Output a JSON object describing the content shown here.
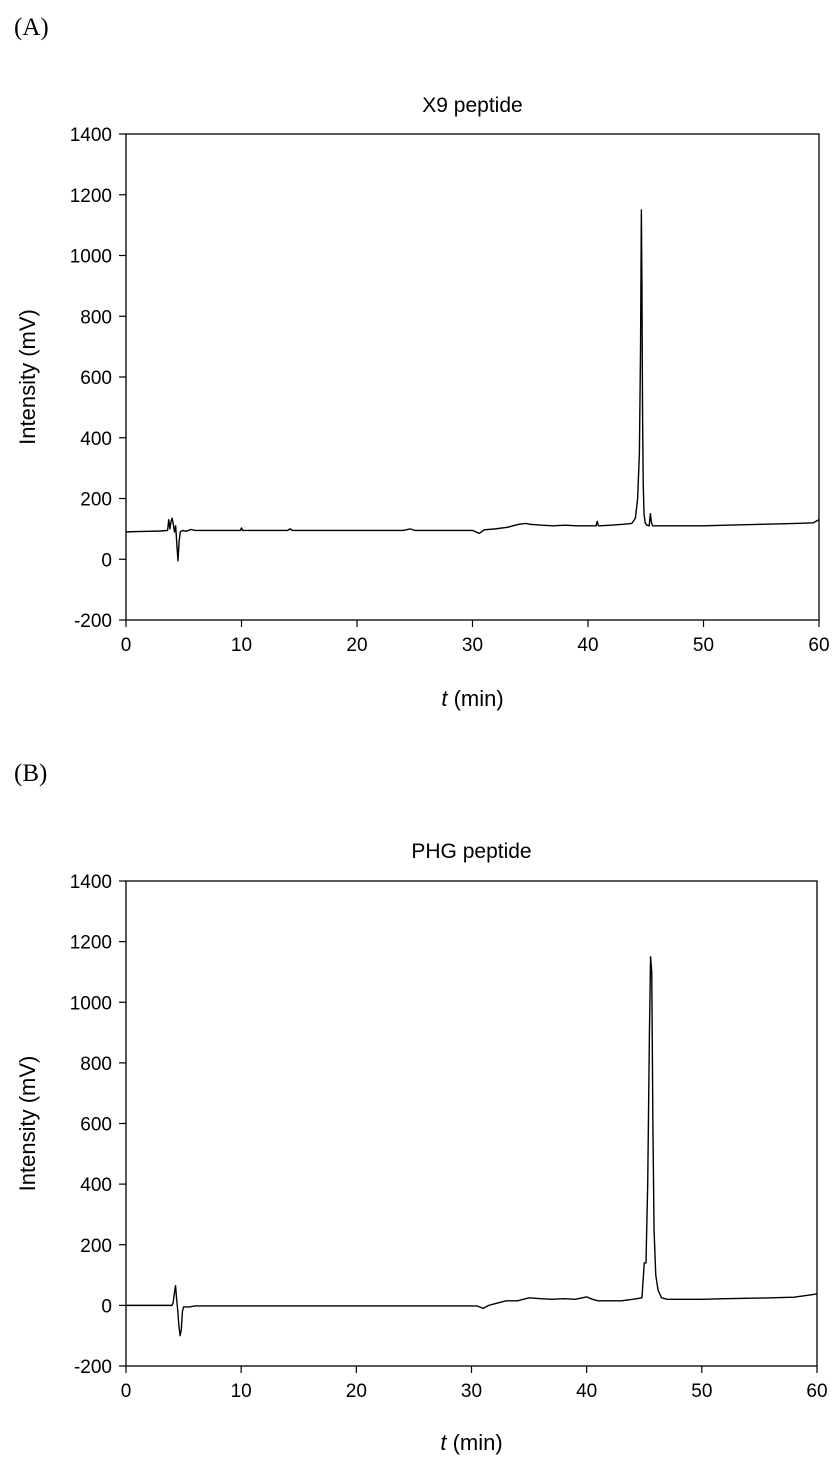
{
  "panels": [
    {
      "label": "(A)"
    },
    {
      "label": "(B)"
    }
  ],
  "chart_data": [
    {
      "type": "line",
      "title": "X9 peptide",
      "ylabel": "Intensity (mV)",
      "xlabel_italic": "t",
      "xlabel_rest": " (min)",
      "xlim": [
        0,
        60
      ],
      "ylim": [
        -200,
        1400
      ],
      "xticks": [
        0,
        10,
        20,
        30,
        40,
        50,
        60
      ],
      "yticks": [
        -200,
        0,
        200,
        400,
        600,
        800,
        1000,
        1200,
        1400
      ],
      "grid": false,
      "line_color": "#000000",
      "series": [
        {
          "x": [
            0,
            1,
            2,
            3,
            3.6,
            3.7,
            3.8,
            3.9,
            4.0,
            4.1,
            4.2,
            4.3,
            4.4,
            4.5,
            4.6,
            4.7,
            4.9,
            5.2,
            5.6,
            6,
            8,
            9.9,
            10,
            10.1,
            12,
            14,
            14.2,
            14.4,
            16,
            20,
            24,
            24.6,
            25,
            28,
            30,
            30.6,
            31,
            32,
            33,
            34,
            34.6,
            35,
            36,
            37,
            38,
            39,
            40,
            40.7,
            40.8,
            40.9,
            41,
            42,
            43,
            43.8,
            44.1,
            44.3,
            44.45,
            44.55,
            44.62,
            44.67,
            44.72,
            44.78,
            44.85,
            44.95,
            45.1,
            45.3,
            45.4,
            45.5,
            45.6,
            45.8,
            46,
            47,
            48,
            50,
            52,
            55,
            58,
            59.5,
            60
          ],
          "y": [
            90,
            91,
            92,
            93,
            95,
            130,
            100,
            125,
            135,
            115,
            90,
            110,
            50,
            -5,
            60,
            90,
            95,
            92,
            98,
            95,
            95,
            95,
            103,
            95,
            95,
            95,
            100,
            95,
            95,
            95,
            95,
            100,
            95,
            95,
            95,
            85,
            97,
            100,
            105,
            115,
            118,
            115,
            112,
            110,
            112,
            110,
            110,
            110,
            125,
            110,
            110,
            112,
            115,
            118,
            135,
            200,
            350,
            700,
            1150,
            900,
            500,
            250,
            150,
            120,
            112,
            110,
            150,
            120,
            110,
            110,
            110,
            110,
            110,
            110,
            112,
            115,
            118,
            120,
            130
          ]
        }
      ]
    },
    {
      "type": "line",
      "title": "PHG peptide",
      "ylabel": "Intensity (mV)",
      "xlabel_italic": "t",
      "xlabel_rest": " (min)",
      "xlim": [
        0,
        60
      ],
      "ylim": [
        -200,
        1400
      ],
      "xticks": [
        0,
        10,
        20,
        30,
        40,
        50,
        60
      ],
      "yticks": [
        -200,
        0,
        200,
        400,
        600,
        800,
        1000,
        1200,
        1400
      ],
      "grid": false,
      "line_color": "#000000",
      "series": [
        {
          "x": [
            0,
            2,
            4,
            4.1,
            4.2,
            4.3,
            4.4,
            4.5,
            4.6,
            4.7,
            4.8,
            4.9,
            5.0,
            5.2,
            5.5,
            6,
            10,
            20,
            30,
            30.5,
            31,
            31.5,
            32,
            33,
            34,
            35,
            36,
            37,
            38,
            39,
            40,
            40.5,
            41,
            42,
            43,
            44,
            44.8,
            45.0,
            45.15,
            45.3,
            45.45,
            45.55,
            45.65,
            45.75,
            45.85,
            46.0,
            46.2,
            46.5,
            47,
            48,
            50,
            52,
            55,
            58,
            59.5,
            60
          ],
          "y": [
            0,
            0,
            0,
            10,
            40,
            65,
            20,
            -20,
            -70,
            -100,
            -80,
            -20,
            -5,
            -5,
            -5,
            -2,
            -2,
            -2,
            -2,
            -2,
            -10,
            0,
            5,
            15,
            15,
            25,
            22,
            20,
            22,
            20,
            28,
            20,
            15,
            15,
            15,
            20,
            25,
            140,
            140,
            400,
            900,
            1150,
            1100,
            600,
            250,
            100,
            50,
            25,
            20,
            20,
            20,
            22,
            24,
            27,
            35,
            38
          ]
        }
      ]
    }
  ]
}
